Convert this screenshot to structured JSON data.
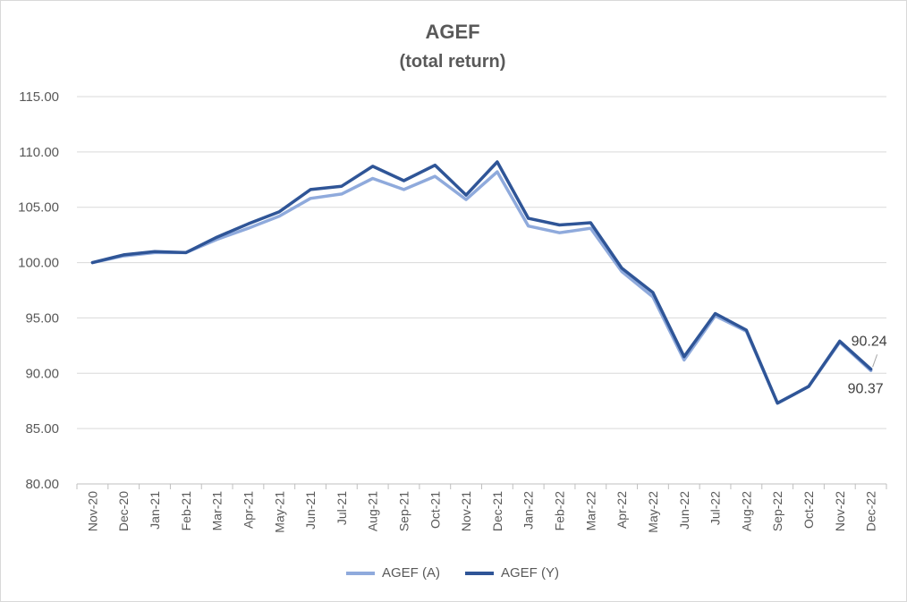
{
  "chart_data": {
    "type": "line",
    "title": "AGEF",
    "subtitle": "(total return)",
    "xlabel": "",
    "ylabel": "",
    "ylim": [
      80,
      115
    ],
    "yticks": [
      "80.00",
      "85.00",
      "90.00",
      "95.00",
      "100.00",
      "105.00",
      "110.00",
      "115.00"
    ],
    "grid": true,
    "legend_position": "bottom",
    "categories": [
      "Nov-20",
      "Dec-20",
      "Jan-21",
      "Feb-21",
      "Mar-21",
      "Apr-21",
      "May-21",
      "Jun-21",
      "Jul-21",
      "Aug-21",
      "Sep-21",
      "Oct-21",
      "Nov-21",
      "Dec-21",
      "Jan-22",
      "Feb-22",
      "Mar-22",
      "Apr-22",
      "May-22",
      "Jun-22",
      "Jul-22",
      "Aug-22",
      "Sep-22",
      "Oct-22",
      "Nov-22",
      "Dec-22"
    ],
    "series": [
      {
        "name": "AGEF (A)",
        "color": "#8faadc",
        "values": [
          100.0,
          100.6,
          100.9,
          100.9,
          102.1,
          103.1,
          104.2,
          105.8,
          106.2,
          107.6,
          106.6,
          107.8,
          105.7,
          108.2,
          103.3,
          102.7,
          103.1,
          99.2,
          96.9,
          91.2,
          95.2,
          93.8,
          87.3,
          88.8,
          92.8,
          90.24
        ]
      },
      {
        "name": "AGEF (Y)",
        "color": "#2f5597",
        "values": [
          100.0,
          100.7,
          101.0,
          100.9,
          102.3,
          103.5,
          104.6,
          106.6,
          106.9,
          108.7,
          107.4,
          108.8,
          106.1,
          109.1,
          104.0,
          103.4,
          103.6,
          99.5,
          97.3,
          91.5,
          95.4,
          93.9,
          87.3,
          88.8,
          92.9,
          90.37
        ]
      }
    ],
    "annotations": [
      {
        "text": "90.24",
        "series": "AGEF (A)",
        "x": "Dec-22"
      },
      {
        "text": "90.37",
        "series": "AGEF (Y)",
        "x": "Dec-22"
      }
    ]
  }
}
